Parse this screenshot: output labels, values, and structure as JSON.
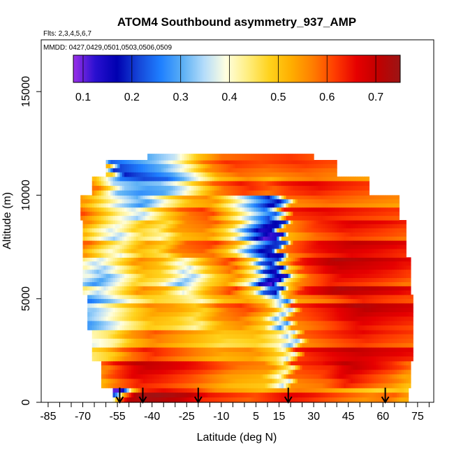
{
  "chart_data": {
    "type": "heatmap",
    "title": "ATOM4 Southbound asymmetry_937_AMP",
    "subtitle_flights": "Flts: 2,3,4,5,6,7",
    "subtitle_dates": "MMDD: 0427,0429,0501,0503,0506,0509",
    "xlabel": "Latitude (deg N)",
    "ylabel": "Altitude (m)",
    "xlim": [
      -88,
      82
    ],
    "ylim": [
      0,
      17500
    ],
    "x_ticks": [
      -85,
      -70,
      -55,
      -40,
      -25,
      -10,
      5,
      15,
      30,
      45,
      60,
      75
    ],
    "x_tick_labels": [
      "-85",
      "-70",
      "-55",
      "-40",
      "-25",
      "-10",
      "5",
      "15",
      "30",
      "45",
      "60",
      "75"
    ],
    "x_minor_step": 5,
    "y_ticks": [
      0,
      5000,
      10000,
      15000
    ],
    "y_tick_labels": [
      "0",
      "5000",
      "10000",
      "15000"
    ],
    "colorbar": {
      "range": [
        0.08,
        0.75
      ],
      "ticks": [
        0.1,
        0.2,
        0.3,
        0.4,
        0.5,
        0.6,
        0.7
      ],
      "tick_labels": [
        "0.1",
        "0.2",
        "0.3",
        "0.4",
        "0.5",
        "0.6",
        "0.7"
      ],
      "colors": [
        "#9a30e8",
        "#2a10d0",
        "#0000b0",
        "#1546d8",
        "#1e7fff",
        "#5aaff5",
        "#b4dcfa",
        "#ffffe0",
        "#ffee80",
        "#ffd21c",
        "#ffae00",
        "#ff7d00",
        "#ff3c00",
        "#e60000",
        "#c00000",
        "#9b1515"
      ]
    },
    "arrow_latitudes": [
      -54,
      -44,
      -20,
      19,
      61
    ],
    "regions": [
      {
        "y": [
          0,
          700
        ],
        "x": [
          -57,
          71
        ],
        "stops": [
          [
            -57,
            0.15
          ],
          [
            -55,
            0.25
          ],
          [
            -52,
            0.5
          ],
          [
            -47,
            0.68
          ],
          [
            -38,
            0.7
          ],
          [
            -25,
            0.67
          ],
          [
            -15,
            0.6
          ],
          [
            -5,
            0.58
          ],
          [
            5,
            0.56
          ],
          [
            15,
            0.6
          ],
          [
            20,
            0.62
          ],
          [
            30,
            0.6
          ],
          [
            45,
            0.55
          ],
          [
            55,
            0.52
          ],
          [
            65,
            0.55
          ],
          [
            71,
            0.5
          ]
        ]
      },
      {
        "y": [
          700,
          2000
        ],
        "x": [
          -62,
          72
        ],
        "stops": [
          [
            -62,
            0.55
          ],
          [
            -55,
            0.62
          ],
          [
            -45,
            0.68
          ],
          [
            -35,
            0.66
          ],
          [
            -20,
            0.62
          ],
          [
            -5,
            0.56
          ],
          [
            10,
            0.54
          ],
          [
            18,
            0.4
          ],
          [
            22,
            0.6
          ],
          [
            35,
            0.62
          ],
          [
            45,
            0.68
          ],
          [
            55,
            0.64
          ],
          [
            65,
            0.6
          ],
          [
            72,
            0.55
          ]
        ]
      },
      {
        "y": [
          2000,
          3500
        ],
        "x": [
          -66,
          73
        ],
        "stops": [
          [
            -66,
            0.42
          ],
          [
            -58,
            0.46
          ],
          [
            -50,
            0.55
          ],
          [
            -40,
            0.6
          ],
          [
            -25,
            0.55
          ],
          [
            -10,
            0.5
          ],
          [
            5,
            0.52
          ],
          [
            15,
            0.45
          ],
          [
            20,
            0.35
          ],
          [
            25,
            0.6
          ],
          [
            40,
            0.64
          ],
          [
            50,
            0.66
          ],
          [
            60,
            0.64
          ],
          [
            73,
            0.62
          ]
        ]
      },
      {
        "y": [
          3500,
          5200
        ],
        "x": [
          -68,
          73
        ],
        "stops": [
          [
            -68,
            0.3
          ],
          [
            -60,
            0.36
          ],
          [
            -50,
            0.45
          ],
          [
            -40,
            0.52
          ],
          [
            -30,
            0.5
          ],
          [
            -20,
            0.45
          ],
          [
            -10,
            0.55
          ],
          [
            0,
            0.58
          ],
          [
            10,
            0.5
          ],
          [
            17,
            0.3
          ],
          [
            22,
            0.58
          ],
          [
            35,
            0.62
          ],
          [
            50,
            0.68
          ],
          [
            60,
            0.66
          ],
          [
            73,
            0.64
          ]
        ]
      },
      {
        "y": [
          5200,
          7000
        ],
        "x": [
          -70,
          72
        ],
        "stops": [
          [
            -70,
            0.4
          ],
          [
            -62,
            0.32
          ],
          [
            -55,
            0.4
          ],
          [
            -45,
            0.52
          ],
          [
            -35,
            0.48
          ],
          [
            -25,
            0.35
          ],
          [
            -15,
            0.5
          ],
          [
            -5,
            0.58
          ],
          [
            5,
            0.42
          ],
          [
            10,
            0.2
          ],
          [
            15,
            0.15
          ],
          [
            18,
            0.45
          ],
          [
            25,
            0.6
          ],
          [
            40,
            0.68
          ],
          [
            55,
            0.66
          ],
          [
            65,
            0.64
          ],
          [
            72,
            0.62
          ]
        ]
      },
      {
        "y": [
          7000,
          8800
        ],
        "x": [
          -70,
          70
        ],
        "stops": [
          [
            -70,
            0.55
          ],
          [
            -62,
            0.45
          ],
          [
            -55,
            0.38
          ],
          [
            -45,
            0.5
          ],
          [
            -35,
            0.45
          ],
          [
            -28,
            0.55
          ],
          [
            -15,
            0.58
          ],
          [
            -5,
            0.48
          ],
          [
            5,
            0.25
          ],
          [
            10,
            0.15
          ],
          [
            15,
            0.18
          ],
          [
            18,
            0.55
          ],
          [
            30,
            0.62
          ],
          [
            45,
            0.66
          ],
          [
            60,
            0.64
          ],
          [
            70,
            0.62
          ]
        ]
      },
      {
        "y": [
          8800,
          10000
        ],
        "x": [
          -71,
          67
        ],
        "stops": [
          [
            -71,
            0.58
          ],
          [
            -62,
            0.48
          ],
          [
            -55,
            0.4
          ],
          [
            -45,
            0.32
          ],
          [
            -35,
            0.45
          ],
          [
            -25,
            0.55
          ],
          [
            -15,
            0.58
          ],
          [
            -5,
            0.45
          ],
          [
            5,
            0.3
          ],
          [
            12,
            0.2
          ],
          [
            16,
            0.35
          ],
          [
            20,
            0.6
          ],
          [
            35,
            0.62
          ],
          [
            50,
            0.6
          ],
          [
            67,
            0.58
          ]
        ]
      },
      {
        "y": [
          10000,
          10900
        ],
        "x": [
          -66,
          54
        ],
        "stops": [
          [
            -66,
            0.55
          ],
          [
            -55,
            0.3
          ],
          [
            -45,
            0.26
          ],
          [
            -35,
            0.28
          ],
          [
            -28,
            0.35
          ],
          [
            -20,
            0.45
          ],
          [
            -12,
            0.55
          ],
          [
            0,
            0.6
          ],
          [
            10,
            0.56
          ],
          [
            18,
            0.6
          ],
          [
            30,
            0.62
          ],
          [
            40,
            0.6
          ],
          [
            54,
            0.58
          ]
        ]
      },
      {
        "y": [
          10900,
          11700
        ],
        "x": [
          -60,
          40
        ],
        "stops": [
          [
            -60,
            0.5
          ],
          [
            -55,
            0.2
          ],
          [
            -45,
            0.25
          ],
          [
            -35,
            0.3
          ],
          [
            -25,
            0.4
          ],
          [
            -15,
            0.55
          ],
          [
            -5,
            0.6
          ],
          [
            10,
            0.58
          ],
          [
            25,
            0.6
          ],
          [
            40,
            0.58
          ]
        ]
      },
      {
        "y": [
          11700,
          12000
        ],
        "x": [
          -42,
          30
        ],
        "stops": [
          [
            -42,
            0.3
          ],
          [
            -30,
            0.36
          ],
          [
            -20,
            0.5
          ],
          [
            -10,
            0.58
          ],
          [
            5,
            0.6
          ],
          [
            20,
            0.62
          ],
          [
            30,
            0.6
          ]
        ]
      }
    ]
  }
}
